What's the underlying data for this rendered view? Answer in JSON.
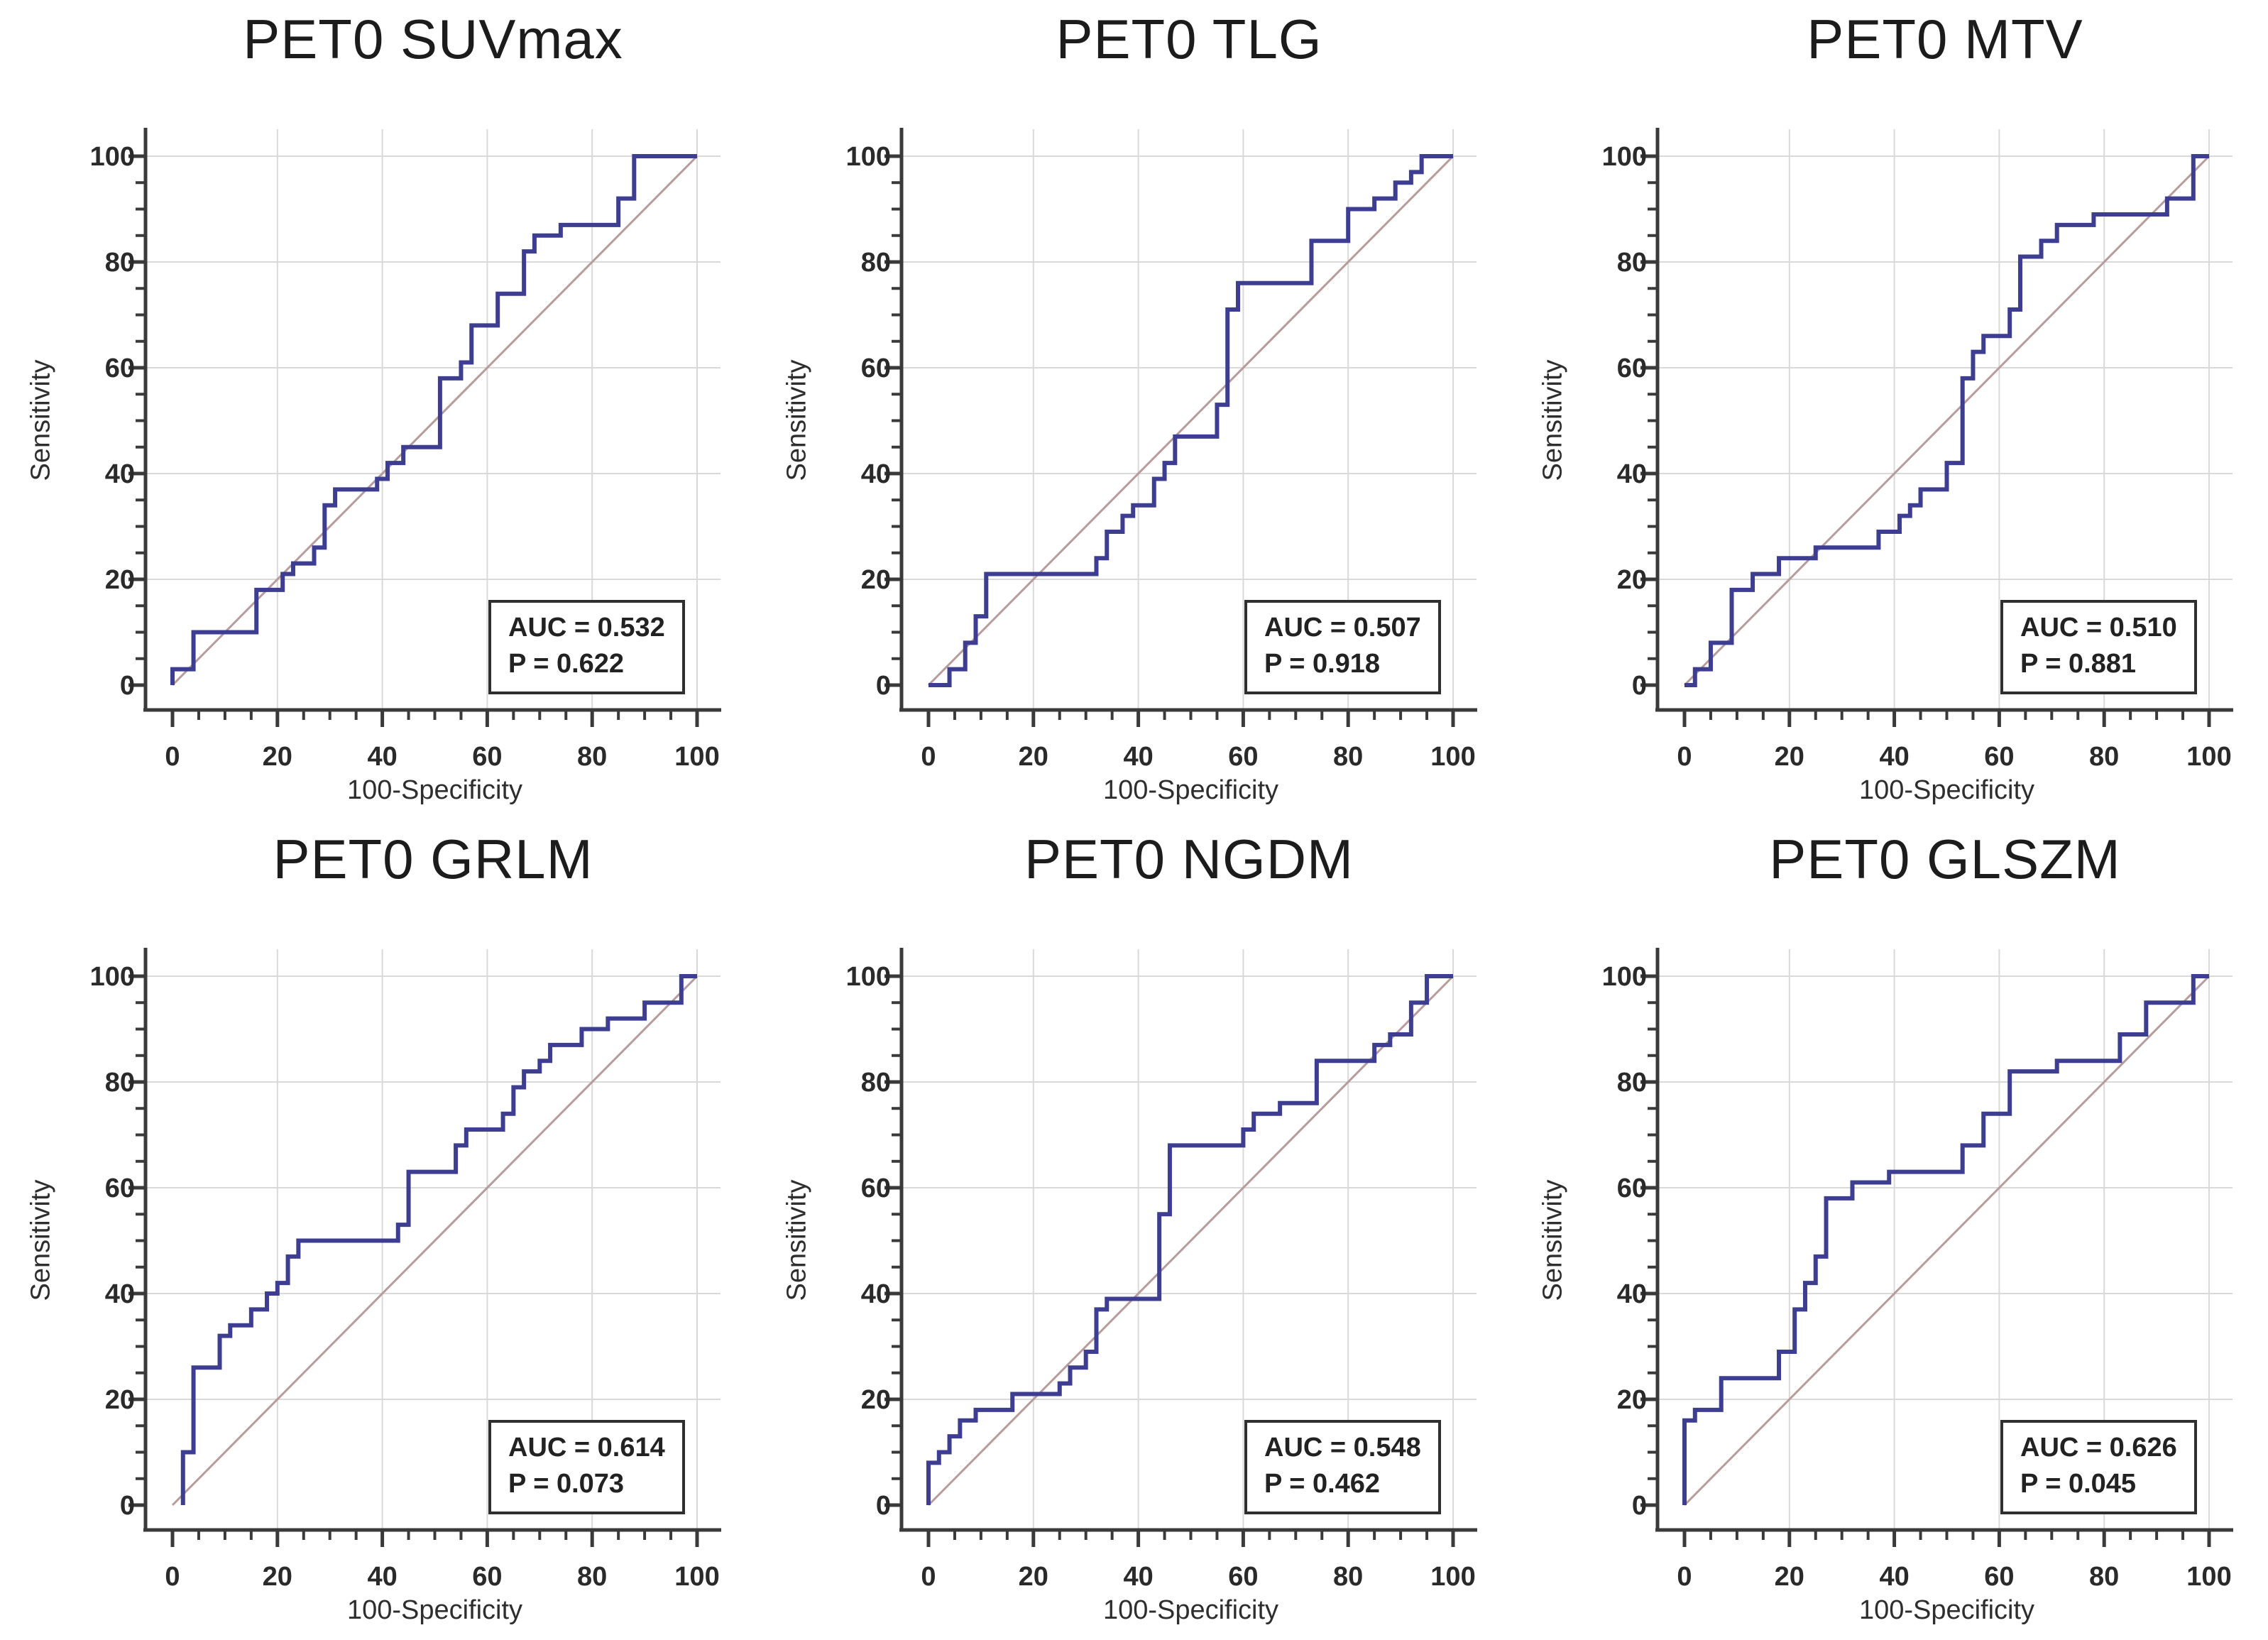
{
  "colors": {
    "curve": "#3d3d92",
    "diagonal": "#b89c9c",
    "grid": "#d9d9d9",
    "axis": "#3a3a3a",
    "text": "#2a2a2a",
    "annotation_border": "#2f2f2f",
    "background": "#ffffff"
  },
  "chart_data": [
    {
      "type": "line",
      "title": "PET0 SUVmax",
      "xlabel": "100-Specificity",
      "ylabel": "Sensitivity",
      "xlim": [
        0,
        100
      ],
      "ylim": [
        0,
        100
      ],
      "x_ticks": [
        0,
        20,
        40,
        60,
        80,
        100
      ],
      "y_ticks": [
        0,
        20,
        40,
        60,
        80,
        100
      ],
      "minor_tick_step": 5,
      "grid": true,
      "auc": 0.532,
      "p": 0.622,
      "auc_label": "AUC = 0.532",
      "p_label": "P = 0.622",
      "diagonal": [
        [
          0,
          0
        ],
        [
          100,
          100
        ]
      ],
      "roc_points": [
        [
          0,
          0
        ],
        [
          0,
          3
        ],
        [
          4,
          3
        ],
        [
          4,
          10
        ],
        [
          16,
          10
        ],
        [
          16,
          18
        ],
        [
          21,
          18
        ],
        [
          21,
          21
        ],
        [
          23,
          21
        ],
        [
          23,
          23
        ],
        [
          27,
          23
        ],
        [
          27,
          26
        ],
        [
          29,
          26
        ],
        [
          29,
          34
        ],
        [
          31,
          34
        ],
        [
          31,
          37
        ],
        [
          39,
          37
        ],
        [
          39,
          39
        ],
        [
          41,
          39
        ],
        [
          41,
          42
        ],
        [
          44,
          42
        ],
        [
          44,
          45
        ],
        [
          51,
          45
        ],
        [
          51,
          58
        ],
        [
          55,
          58
        ],
        [
          55,
          61
        ],
        [
          57,
          61
        ],
        [
          57,
          68
        ],
        [
          62,
          68
        ],
        [
          62,
          74
        ],
        [
          67,
          74
        ],
        [
          67,
          82
        ],
        [
          69,
          82
        ],
        [
          69,
          85
        ],
        [
          74,
          85
        ],
        [
          74,
          87
        ],
        [
          85,
          87
        ],
        [
          85,
          92
        ],
        [
          88,
          92
        ],
        [
          88,
          100
        ],
        [
          100,
          100
        ]
      ]
    },
    {
      "type": "line",
      "title": "PET0 TLG",
      "xlabel": "100-Specificity",
      "ylabel": "Sensitivity",
      "xlim": [
        0,
        100
      ],
      "ylim": [
        0,
        100
      ],
      "x_ticks": [
        0,
        20,
        40,
        60,
        80,
        100
      ],
      "y_ticks": [
        0,
        20,
        40,
        60,
        80,
        100
      ],
      "minor_tick_step": 5,
      "grid": true,
      "auc": 0.507,
      "p": 0.918,
      "auc_label": "AUC = 0.507",
      "p_label": "P = 0.918",
      "diagonal": [
        [
          0,
          0
        ],
        [
          100,
          100
        ]
      ],
      "roc_points": [
        [
          0,
          0
        ],
        [
          4,
          0
        ],
        [
          4,
          3
        ],
        [
          7,
          3
        ],
        [
          7,
          8
        ],
        [
          9,
          8
        ],
        [
          9,
          13
        ],
        [
          11,
          13
        ],
        [
          11,
          21
        ],
        [
          32,
          21
        ],
        [
          32,
          24
        ],
        [
          34,
          24
        ],
        [
          34,
          29
        ],
        [
          37,
          29
        ],
        [
          37,
          32
        ],
        [
          39,
          32
        ],
        [
          39,
          34
        ],
        [
          43,
          34
        ],
        [
          43,
          39
        ],
        [
          45,
          39
        ],
        [
          45,
          42
        ],
        [
          47,
          42
        ],
        [
          47,
          47
        ],
        [
          55,
          47
        ],
        [
          55,
          53
        ],
        [
          57,
          53
        ],
        [
          57,
          71
        ],
        [
          59,
          71
        ],
        [
          59,
          76
        ],
        [
          73,
          76
        ],
        [
          73,
          84
        ],
        [
          80,
          84
        ],
        [
          80,
          90
        ],
        [
          85,
          90
        ],
        [
          85,
          92
        ],
        [
          89,
          92
        ],
        [
          89,
          95
        ],
        [
          92,
          95
        ],
        [
          92,
          97
        ],
        [
          94,
          97
        ],
        [
          94,
          100
        ],
        [
          100,
          100
        ]
      ]
    },
    {
      "type": "line",
      "title": "PET0 MTV",
      "xlabel": "100-Specificity",
      "ylabel": "Sensitivity",
      "xlim": [
        0,
        100
      ],
      "ylim": [
        0,
        100
      ],
      "x_ticks": [
        0,
        20,
        40,
        60,
        80,
        100
      ],
      "y_ticks": [
        0,
        20,
        40,
        60,
        80,
        100
      ],
      "minor_tick_step": 5,
      "grid": true,
      "auc": 0.51,
      "p": 0.881,
      "auc_label": "AUC = 0.510",
      "p_label": "P = 0.881",
      "diagonal": [
        [
          0,
          0
        ],
        [
          100,
          100
        ]
      ],
      "roc_points": [
        [
          0,
          0
        ],
        [
          2,
          0
        ],
        [
          2,
          3
        ],
        [
          5,
          3
        ],
        [
          5,
          8
        ],
        [
          9,
          8
        ],
        [
          9,
          18
        ],
        [
          13,
          18
        ],
        [
          13,
          21
        ],
        [
          18,
          21
        ],
        [
          18,
          24
        ],
        [
          25,
          24
        ],
        [
          25,
          26
        ],
        [
          37,
          26
        ],
        [
          37,
          29
        ],
        [
          41,
          29
        ],
        [
          41,
          32
        ],
        [
          43,
          32
        ],
        [
          43,
          34
        ],
        [
          45,
          34
        ],
        [
          45,
          37
        ],
        [
          50,
          37
        ],
        [
          50,
          42
        ],
        [
          53,
          42
        ],
        [
          53,
          58
        ],
        [
          55,
          58
        ],
        [
          55,
          63
        ],
        [
          57,
          63
        ],
        [
          57,
          66
        ],
        [
          62,
          66
        ],
        [
          62,
          71
        ],
        [
          64,
          71
        ],
        [
          64,
          81
        ],
        [
          68,
          81
        ],
        [
          68,
          84
        ],
        [
          71,
          84
        ],
        [
          71,
          87
        ],
        [
          78,
          87
        ],
        [
          78,
          89
        ],
        [
          92,
          89
        ],
        [
          92,
          92
        ],
        [
          97,
          92
        ],
        [
          97,
          100
        ],
        [
          100,
          100
        ]
      ]
    },
    {
      "type": "line",
      "title": "PET0 GRLM",
      "xlabel": "100-Specificity",
      "ylabel": "Sensitivity",
      "xlim": [
        0,
        100
      ],
      "ylim": [
        0,
        100
      ],
      "x_ticks": [
        0,
        20,
        40,
        60,
        80,
        100
      ],
      "y_ticks": [
        0,
        20,
        40,
        60,
        80,
        100
      ],
      "minor_tick_step": 5,
      "grid": true,
      "auc": 0.614,
      "p": 0.073,
      "auc_label": "AUC = 0.614",
      "p_label": "P = 0.073",
      "diagonal": [
        [
          0,
          0
        ],
        [
          100,
          100
        ]
      ],
      "roc_points": [
        [
          2,
          0
        ],
        [
          2,
          10
        ],
        [
          4,
          10
        ],
        [
          4,
          26
        ],
        [
          9,
          26
        ],
        [
          9,
          32
        ],
        [
          11,
          32
        ],
        [
          11,
          34
        ],
        [
          15,
          34
        ],
        [
          15,
          37
        ],
        [
          18,
          37
        ],
        [
          18,
          40
        ],
        [
          20,
          40
        ],
        [
          20,
          42
        ],
        [
          22,
          42
        ],
        [
          22,
          47
        ],
        [
          24,
          47
        ],
        [
          24,
          50
        ],
        [
          43,
          50
        ],
        [
          43,
          53
        ],
        [
          45,
          53
        ],
        [
          45,
          63
        ],
        [
          54,
          63
        ],
        [
          54,
          68
        ],
        [
          56,
          68
        ],
        [
          56,
          71
        ],
        [
          63,
          71
        ],
        [
          63,
          74
        ],
        [
          65,
          74
        ],
        [
          65,
          79
        ],
        [
          67,
          79
        ],
        [
          67,
          82
        ],
        [
          70,
          82
        ],
        [
          70,
          84
        ],
        [
          72,
          84
        ],
        [
          72,
          87
        ],
        [
          78,
          87
        ],
        [
          78,
          90
        ],
        [
          83,
          90
        ],
        [
          83,
          92
        ],
        [
          90,
          92
        ],
        [
          90,
          95
        ],
        [
          97,
          95
        ],
        [
          97,
          100
        ],
        [
          100,
          100
        ]
      ]
    },
    {
      "type": "line",
      "title": "PET0 NGDM",
      "xlabel": "100-Specificity",
      "ylabel": "Sensitivity",
      "xlim": [
        0,
        100
      ],
      "ylim": [
        0,
        100
      ],
      "x_ticks": [
        0,
        20,
        40,
        60,
        80,
        100
      ],
      "y_ticks": [
        0,
        20,
        40,
        60,
        80,
        100
      ],
      "minor_tick_step": 5,
      "grid": true,
      "auc": 0.548,
      "p": 0.462,
      "auc_label": "AUC = 0.548",
      "p_label": "P = 0.462",
      "diagonal": [
        [
          0,
          0
        ],
        [
          100,
          100
        ]
      ],
      "roc_points": [
        [
          0,
          0
        ],
        [
          0,
          8
        ],
        [
          2,
          8
        ],
        [
          2,
          10
        ],
        [
          4,
          10
        ],
        [
          4,
          13
        ],
        [
          6,
          13
        ],
        [
          6,
          16
        ],
        [
          9,
          16
        ],
        [
          9,
          18
        ],
        [
          16,
          18
        ],
        [
          16,
          21
        ],
        [
          25,
          21
        ],
        [
          25,
          23
        ],
        [
          27,
          23
        ],
        [
          27,
          26
        ],
        [
          30,
          26
        ],
        [
          30,
          29
        ],
        [
          32,
          29
        ],
        [
          32,
          37
        ],
        [
          34,
          37
        ],
        [
          34,
          39
        ],
        [
          44,
          39
        ],
        [
          44,
          55
        ],
        [
          46,
          55
        ],
        [
          46,
          68
        ],
        [
          60,
          68
        ],
        [
          60,
          71
        ],
        [
          62,
          71
        ],
        [
          62,
          74
        ],
        [
          67,
          74
        ],
        [
          67,
          76
        ],
        [
          74,
          76
        ],
        [
          74,
          84
        ],
        [
          85,
          84
        ],
        [
          85,
          87
        ],
        [
          88,
          87
        ],
        [
          88,
          89
        ],
        [
          92,
          89
        ],
        [
          92,
          95
        ],
        [
          95,
          95
        ],
        [
          95,
          100
        ],
        [
          100,
          100
        ]
      ]
    },
    {
      "type": "line",
      "title": "PET0 GLSZM",
      "xlabel": "100-Specificity",
      "ylabel": "Sensitivity",
      "xlim": [
        0,
        100
      ],
      "ylim": [
        0,
        100
      ],
      "x_ticks": [
        0,
        20,
        40,
        60,
        80,
        100
      ],
      "y_ticks": [
        0,
        20,
        40,
        60,
        80,
        100
      ],
      "minor_tick_step": 5,
      "grid": true,
      "auc": 0.626,
      "p": 0.045,
      "auc_label": "AUC = 0.626",
      "p_label": "P = 0.045",
      "diagonal": [
        [
          0,
          0
        ],
        [
          100,
          100
        ]
      ],
      "roc_points": [
        [
          0,
          0
        ],
        [
          0,
          16
        ],
        [
          2,
          16
        ],
        [
          2,
          18
        ],
        [
          7,
          18
        ],
        [
          7,
          24
        ],
        [
          18,
          24
        ],
        [
          18,
          29
        ],
        [
          21,
          29
        ],
        [
          21,
          37
        ],
        [
          23,
          37
        ],
        [
          23,
          42
        ],
        [
          25,
          42
        ],
        [
          25,
          47
        ],
        [
          27,
          47
        ],
        [
          27,
          58
        ],
        [
          32,
          58
        ],
        [
          32,
          61
        ],
        [
          39,
          61
        ],
        [
          39,
          63
        ],
        [
          53,
          63
        ],
        [
          53,
          68
        ],
        [
          57,
          68
        ],
        [
          57,
          74
        ],
        [
          62,
          74
        ],
        [
          62,
          82
        ],
        [
          71,
          82
        ],
        [
          71,
          84
        ],
        [
          83,
          84
        ],
        [
          83,
          89
        ],
        [
          88,
          89
        ],
        [
          88,
          95
        ],
        [
          97,
          95
        ],
        [
          97,
          100
        ],
        [
          100,
          100
        ]
      ]
    }
  ]
}
